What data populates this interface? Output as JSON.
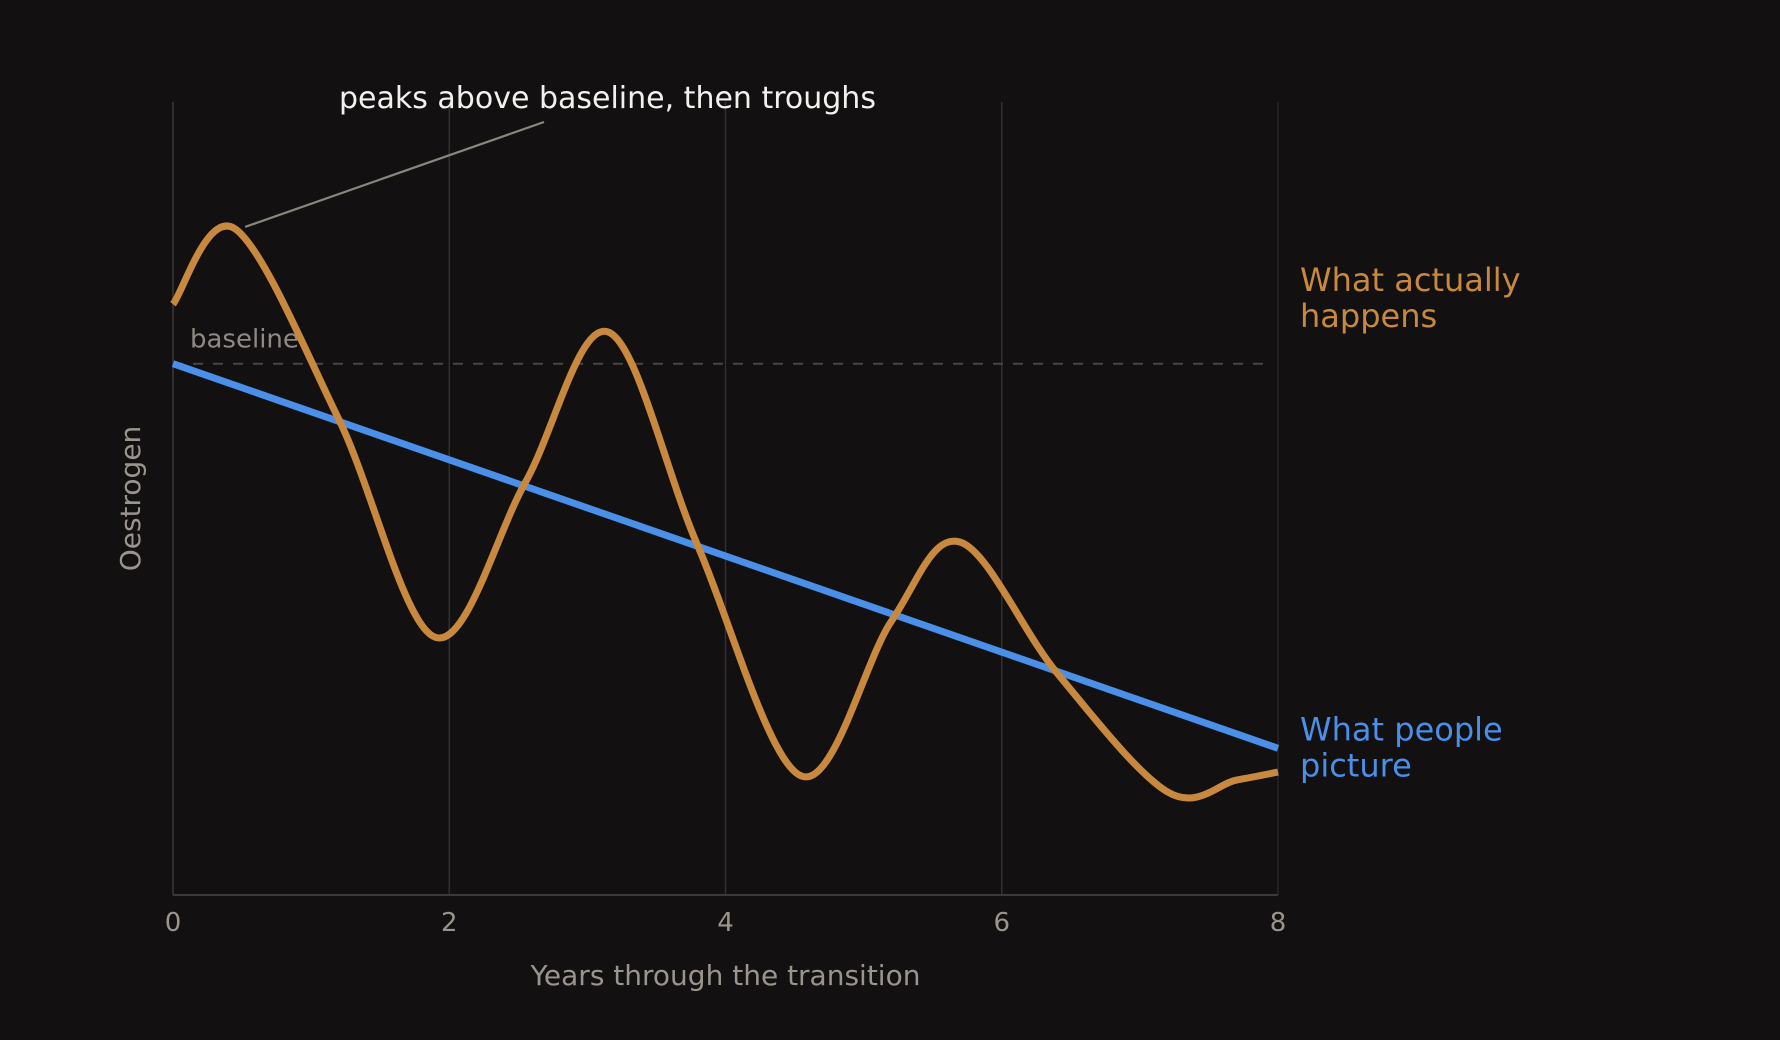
{
  "chart_data": {
    "type": "line",
    "xlabel": "Years through the transition",
    "ylabel": "Oestrogen",
    "xlim": [
      0,
      8
    ],
    "ylim": [
      0,
      100
    ],
    "x_ticks": [
      "0",
      "2",
      "4",
      "6",
      "8"
    ],
    "grid": "vertical",
    "baseline": {
      "label": "baseline",
      "value": 67
    },
    "annotation": {
      "text": "peaks above baseline, then troughs",
      "x": 0.45,
      "y": 84
    },
    "series": [
      {
        "name": "What people picture",
        "label_lines": [
          "What people",
          "picture"
        ],
        "color": "#4a8fe8",
        "style": "linear",
        "x": [
          0,
          8
        ],
        "y": [
          67,
          18.5
        ]
      },
      {
        "name": "What actually happens",
        "label_lines": [
          "What actually",
          "happens"
        ],
        "color": "#c8893f",
        "style": "smooth",
        "x": [
          0,
          0.45,
          1.2,
          1.9,
          2.55,
          3.15,
          3.8,
          4.55,
          5.2,
          5.7,
          6.4,
          7.2,
          7.7,
          8
        ],
        "y": [
          74.5,
          84,
          60,
          32.5,
          52,
          71,
          44,
          15,
          34.5,
          44.5,
          28,
          13,
          14.5,
          15.5
        ]
      }
    ]
  }
}
